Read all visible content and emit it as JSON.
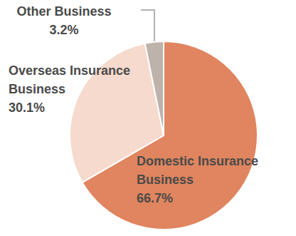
{
  "chart_data": {
    "type": "pie",
    "categories": [
      "Domestic Insurance Business",
      "Overseas Insurance Business",
      "Other Business"
    ],
    "values": [
      66.7,
      30.1,
      3.2
    ],
    "value_labels": [
      "66.7%",
      "30.1%",
      "3.2%"
    ],
    "colors": [
      "#e0855f",
      "#f6dacd",
      "#bdb3aa"
    ],
    "data_labels": true
  }
}
